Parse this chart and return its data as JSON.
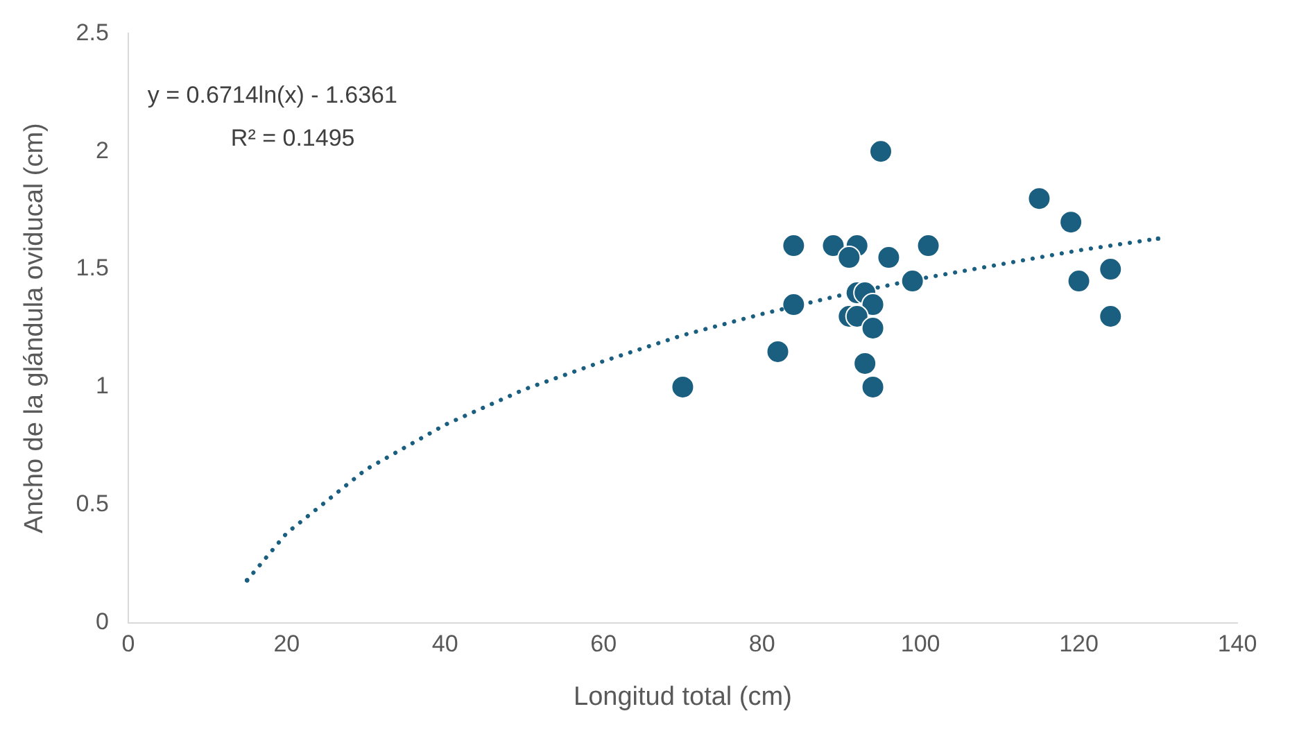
{
  "chart_data": {
    "type": "scatter",
    "xlabel": "Longitud total (cm)",
    "ylabel": "Ancho de la glándula oviducal (cm)",
    "xlim": [
      0,
      140
    ],
    "xticks": [
      0,
      20,
      40,
      60,
      80,
      100,
      120,
      140
    ],
    "ylim": [
      0,
      2.5
    ],
    "yticks": [
      0,
      0.5,
      1,
      1.5,
      2,
      2.5
    ],
    "grid": false,
    "legend": false,
    "marker": "circle",
    "annotations": [
      "y = 0.6714ln(x) - 1.6361",
      "R² = 0.1495"
    ],
    "series": [
      {
        "color": "#1a5e80",
        "x": [
          95,
          115,
          119,
          84,
          89,
          92,
          91,
          96,
          101,
          99,
          120,
          124,
          124,
          84,
          92,
          93,
          94,
          91,
          92,
          94,
          82,
          93,
          94,
          70
        ],
        "values": [
          2.0,
          1.8,
          1.7,
          1.6,
          1.6,
          1.6,
          1.55,
          1.55,
          1.6,
          1.45,
          1.45,
          1.5,
          1.3,
          1.35,
          1.4,
          1.4,
          1.35,
          1.3,
          1.3,
          1.25,
          1.15,
          1.1,
          1.0,
          1.0
        ]
      },
      {
        "type": "line",
        "color": "#1a5e80",
        "line_style": "dotted",
        "marker": "none",
        "x": [
          15,
          20,
          30,
          40,
          50,
          60,
          70,
          80,
          90,
          100,
          110,
          120,
          130
        ],
        "values": [
          0.18,
          0.38,
          0.65,
          0.84,
          0.99,
          1.11,
          1.22,
          1.31,
          1.39,
          1.46,
          1.52,
          1.58,
          1.63
        ]
      }
    ]
  }
}
